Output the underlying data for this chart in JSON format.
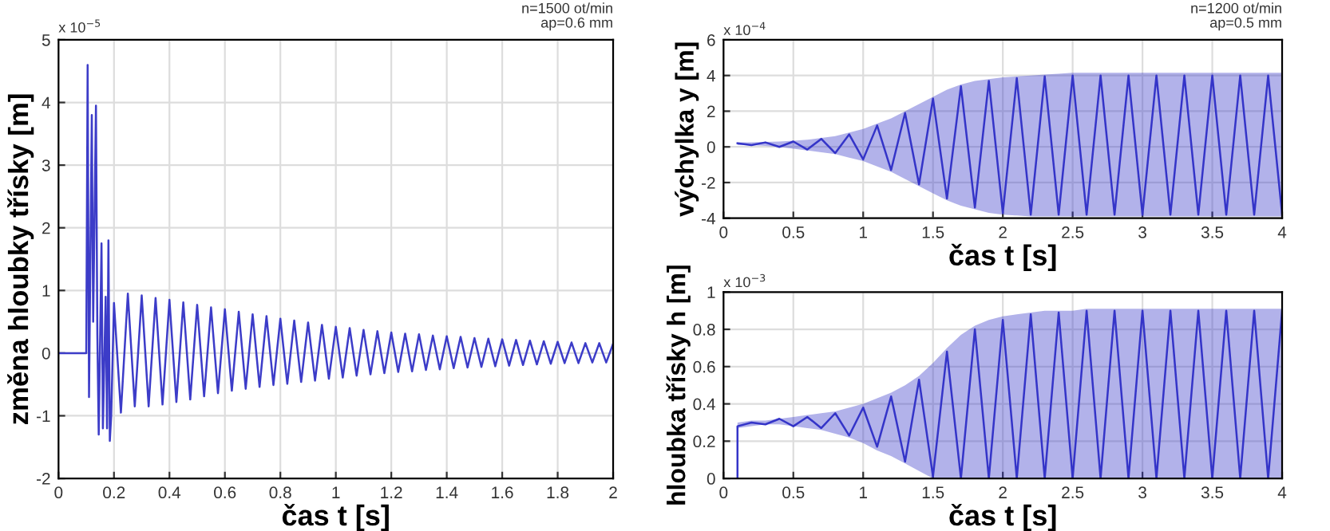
{
  "chart_data": [
    {
      "type": "line",
      "xlabel": "čas t [s]",
      "ylabel": "změna hloubky třísky [m]",
      "xlim": [
        0,
        2
      ],
      "ylim": [
        -2,
        5
      ],
      "xticks": [
        0,
        0.2,
        0.4,
        0.6,
        0.8,
        1,
        1.2,
        1.4,
        1.6,
        1.8,
        2
      ],
      "yticks": [
        -2,
        -1,
        0,
        1,
        2,
        3,
        4,
        5
      ],
      "grid": true,
      "annotations": [
        "x 10$^{−5}$",
        "n=1500 ot/min\nap=0.6 mm"
      ],
      "series": [
        {
          "color": "#3c3cc8",
          "x": [
            0,
            0.1,
            0.105,
            0.11,
            0.12,
            0.125,
            0.135,
            0.14,
            0.145,
            0.155,
            0.16,
            0.17,
            0.175,
            0.18,
            0.185,
            0.19,
            0.2,
            0.225,
            0.25,
            0.275,
            0.3,
            0.325,
            0.35,
            0.375,
            0.4,
            0.425,
            0.45,
            0.475,
            0.5,
            0.525,
            0.55,
            0.575,
            0.6,
            0.625,
            0.65,
            0.675,
            0.7,
            0.725,
            0.75,
            0.775,
            0.8,
            0.825,
            0.85,
            0.875,
            0.9,
            0.925,
            0.95,
            0.975,
            1.0,
            1.025,
            1.05,
            1.075,
            1.1,
            1.125,
            1.15,
            1.175,
            1.2,
            1.225,
            1.25,
            1.275,
            1.3,
            1.325,
            1.35,
            1.375,
            1.4,
            1.425,
            1.45,
            1.475,
            1.5,
            1.525,
            1.55,
            1.575,
            1.6,
            1.625,
            1.65,
            1.675,
            1.7,
            1.725,
            1.75,
            1.775,
            1.8,
            1.825,
            1.85,
            1.875,
            1.9,
            1.925,
            1.95,
            1.975,
            2.0
          ],
          "values": [
            0,
            0,
            4.6,
            -0.7,
            3.8,
            0.5,
            3.95,
            0.3,
            -1.3,
            1.75,
            -1.2,
            0.9,
            -1.2,
            1.8,
            -1.4,
            -1.0,
            0.8,
            -0.95,
            0.95,
            -0.85,
            0.92,
            -0.85,
            0.88,
            -0.82,
            0.85,
            -0.78,
            0.81,
            -0.74,
            0.77,
            -0.69,
            0.73,
            -0.64,
            0.7,
            -0.6,
            0.66,
            -0.57,
            0.62,
            -0.54,
            0.59,
            -0.51,
            0.55,
            -0.49,
            0.52,
            -0.46,
            0.49,
            -0.44,
            0.45,
            -0.41,
            0.42,
            -0.39,
            0.4,
            -0.36,
            0.37,
            -0.34,
            0.35,
            -0.32,
            0.33,
            -0.3,
            0.31,
            -0.29,
            0.3,
            -0.27,
            0.28,
            -0.26,
            0.27,
            -0.24,
            0.26,
            -0.23,
            0.24,
            -0.22,
            0.23,
            -0.21,
            0.22,
            -0.2,
            0.21,
            -0.19,
            0.2,
            -0.18,
            0.19,
            -0.17,
            0.18,
            -0.16,
            0.17,
            -0.16,
            0.16,
            -0.15,
            0.16,
            -0.15,
            0.15
          ]
        }
      ]
    },
    {
      "type": "line",
      "xlabel": "čas t [s]",
      "ylabel": "výchylka y [m]",
      "xlim": [
        0,
        4
      ],
      "ylim": [
        -4,
        6
      ],
      "xticks": [
        0,
        0.5,
        1,
        1.5,
        2,
        2.5,
        3,
        3.5,
        4
      ],
      "yticks": [
        -4,
        -2,
        0,
        2,
        4,
        6
      ],
      "grid": true,
      "annotations": [
        "x 10$^{−4}$",
        "n=1200 ot/min\nap=0.5 mm"
      ],
      "series": [
        {
          "color": "#3434c8",
          "x": [
            0.1,
            0.2,
            0.3,
            0.4,
            0.5,
            0.6,
            0.7,
            0.8,
            0.9,
            1.0,
            1.1,
            1.2,
            1.3,
            1.4,
            1.5,
            1.6,
            1.7,
            1.8,
            1.9,
            2.0,
            2.1,
            2.2,
            2.3,
            2.4,
            2.5,
            2.6,
            2.7,
            2.8,
            2.9,
            3.0,
            3.1,
            3.2,
            3.3,
            3.4,
            3.5,
            3.6,
            3.7,
            3.8,
            3.9,
            4.0
          ],
          "values": [
            0.2,
            0.1,
            0.25,
            0.0,
            0.3,
            -0.15,
            0.45,
            -0.35,
            0.7,
            -0.7,
            1.2,
            -1.3,
            1.9,
            -2.1,
            2.7,
            -2.9,
            3.4,
            -3.4,
            3.7,
            -3.7,
            3.85,
            -3.8,
            3.95,
            -3.8,
            4.0,
            -3.8,
            4.0,
            -3.8,
            4.0,
            -3.8,
            4.0,
            -3.8,
            4.0,
            -3.8,
            4.0,
            -3.8,
            4.0,
            -3.8,
            4.0,
            -3.8
          ],
          "upper": [
            0.25,
            0.25,
            0.28,
            0.3,
            0.35,
            0.4,
            0.5,
            0.6,
            0.8,
            1.0,
            1.3,
            1.6,
            2.0,
            2.4,
            2.8,
            3.2,
            3.5,
            3.7,
            3.8,
            3.9,
            3.95,
            4.0,
            4.05,
            4.1,
            4.15,
            4.15,
            4.15,
            4.15,
            4.15,
            4.15,
            4.15,
            4.15,
            4.15,
            4.15,
            4.15,
            4.15,
            4.15,
            4.15,
            4.15,
            4.15
          ],
          "lower": [
            0.1,
            0.1,
            0.05,
            0.0,
            -0.1,
            -0.2,
            -0.3,
            -0.4,
            -0.6,
            -0.8,
            -1.1,
            -1.4,
            -1.8,
            -2.2,
            -2.6,
            -3.0,
            -3.3,
            -3.5,
            -3.7,
            -3.8,
            -3.85,
            -3.9,
            -3.9,
            -3.9,
            -3.9,
            -3.9,
            -3.9,
            -3.9,
            -3.9,
            -3.9,
            -3.9,
            -3.9,
            -3.9,
            -3.9,
            -3.9,
            -3.9,
            -3.9,
            -3.9,
            -3.9,
            -3.9
          ]
        }
      ]
    },
    {
      "type": "line",
      "xlabel": "čas t [s]",
      "ylabel": "hloubka třísky h [m]",
      "xlim": [
        0,
        4
      ],
      "ylim": [
        0,
        1
      ],
      "xticks": [
        0,
        0.5,
        1,
        1.5,
        2,
        2.5,
        3,
        3.5,
        4
      ],
      "yticks": [
        0,
        0.2,
        0.4,
        0.6,
        0.8,
        1
      ],
      "grid": true,
      "annotations": [
        "x 10$^{−3}$"
      ],
      "series": [
        {
          "color": "#3434c8",
          "x": [
            0.1,
            0.1,
            0.2,
            0.3,
            0.4,
            0.5,
            0.6,
            0.7,
            0.8,
            0.9,
            1.0,
            1.1,
            1.2,
            1.3,
            1.4,
            1.5,
            1.6,
            1.7,
            1.8,
            1.9,
            2.0,
            2.1,
            2.2,
            2.3,
            2.4,
            2.5,
            2.6,
            2.7,
            2.8,
            2.9,
            3.0,
            3.1,
            3.2,
            3.3,
            3.4,
            3.5,
            3.6,
            3.7,
            3.8,
            3.9,
            4.0
          ],
          "values": [
            0,
            0.28,
            0.3,
            0.29,
            0.32,
            0.28,
            0.33,
            0.27,
            0.35,
            0.23,
            0.38,
            0.17,
            0.44,
            0.09,
            0.53,
            0.01,
            0.68,
            0.0,
            0.8,
            0.0,
            0.85,
            0.0,
            0.88,
            0.0,
            0.89,
            0.0,
            0.9,
            0.0,
            0.9,
            0.0,
            0.9,
            0.0,
            0.9,
            0.0,
            0.9,
            0.0,
            0.9,
            0.0,
            0.9,
            0.0,
            0.9
          ],
          "upper": [
            null,
            0.3,
            0.31,
            0.31,
            0.32,
            0.33,
            0.34,
            0.35,
            0.36,
            0.38,
            0.4,
            0.43,
            0.46,
            0.5,
            0.55,
            0.62,
            0.7,
            0.77,
            0.82,
            0.85,
            0.87,
            0.88,
            0.89,
            0.9,
            0.9,
            0.9,
            0.91,
            0.91,
            0.91,
            0.91,
            0.91,
            0.91,
            0.91,
            0.91,
            0.91,
            0.91,
            0.91,
            0.91,
            0.91,
            0.91,
            0.91
          ],
          "lower": [
            null,
            0.27,
            0.28,
            0.29,
            0.29,
            0.28,
            0.27,
            0.26,
            0.24,
            0.22,
            0.19,
            0.15,
            0.12,
            0.08,
            0.04,
            0.0,
            0.0,
            0.0,
            0.0,
            0.0,
            0.0,
            0.0,
            0.0,
            0.0,
            0.0,
            0.0,
            0.0,
            0.0,
            0.0,
            0.0,
            0.0,
            0.0,
            0.0,
            0.0,
            0.0,
            0.0,
            0.0,
            0.0,
            0.0,
            0.0,
            0.0
          ]
        }
      ]
    }
  ]
}
